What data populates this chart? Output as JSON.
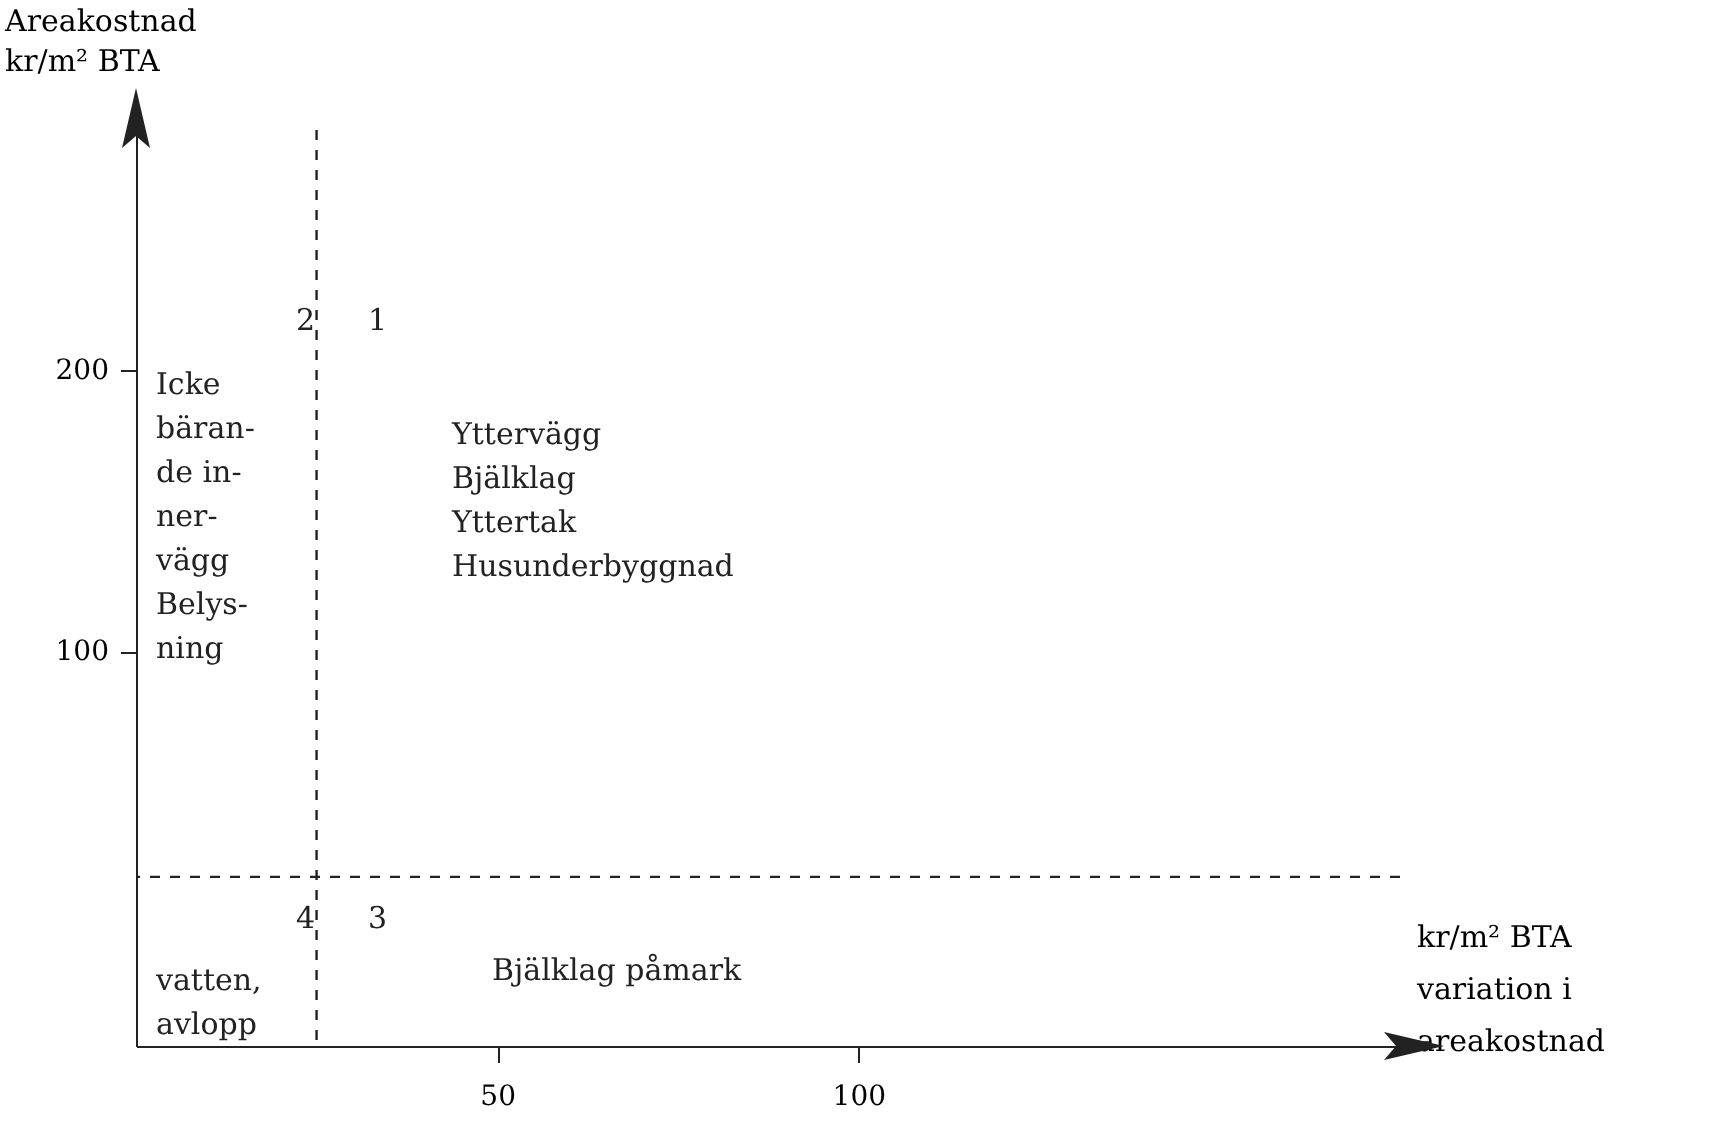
{
  "chart_data": {
    "type": "scatter",
    "xlabel": "kr/m² BTA\nvariation i\nareakostnad",
    "ylabel": "Areakostnad\nkr/m² BTA",
    "xlim": [
      0,
      175
    ],
    "ylim": [
      -40,
      285
    ],
    "xticks": [
      50,
      100
    ],
    "yticks": [
      100,
      200
    ],
    "ref_lines": [
      {
        "axis": "x",
        "value": 25,
        "line_style": "dashed"
      },
      {
        "axis": "y",
        "value": 20,
        "line_style": "dashed"
      }
    ],
    "annotations": [
      "2",
      "1",
      "Icke\nbäran-\nde in-\nner-\nvägg\nBelys-\nning",
      "Yttervägg\nBjälklag\nYttertak\nHusunderbyggnad",
      "4",
      "3",
      "vatten,\navlopp",
      "Bjälklag påmark"
    ]
  }
}
